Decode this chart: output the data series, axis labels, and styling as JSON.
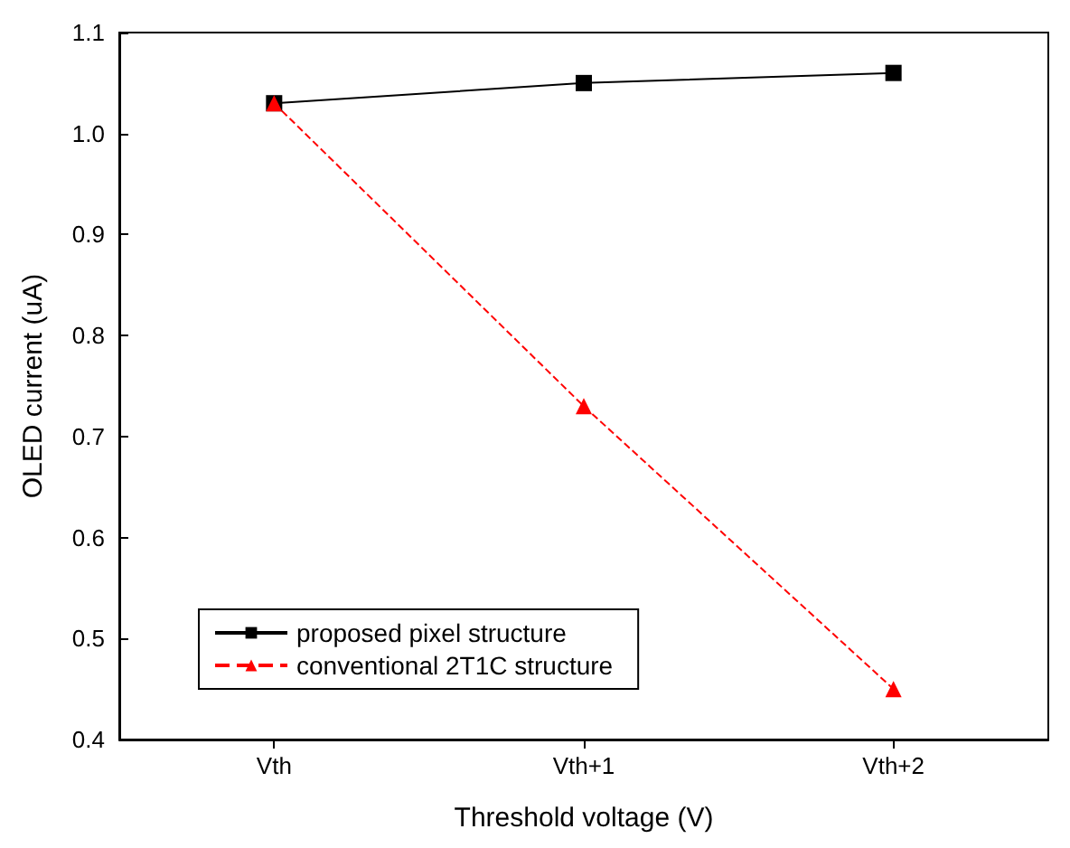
{
  "chart_data": {
    "type": "line",
    "xlabel": "Threshold voltage (V)",
    "ylabel": "OLED current (uA)",
    "categories": [
      "Vth",
      "Vth+1",
      "Vth+2"
    ],
    "series": [
      {
        "name": "proposed pixel structure",
        "color": "#000000",
        "values": [
          1.03,
          1.05,
          1.06
        ],
        "marker": "square",
        "line_style": "solid"
      },
      {
        "name": "conventional 2T1C structure",
        "color": "#ff0000",
        "values": [
          1.03,
          0.73,
          0.45
        ],
        "marker": "triangle",
        "line_style": "dashed"
      }
    ],
    "ylim": [
      0.4,
      1.1
    ],
    "yticks": [
      0.4,
      0.5,
      0.6,
      0.7,
      0.8,
      0.9,
      {
        "value": 1.0,
        "label": "1.0"
      },
      1.1
    ],
    "grid": false,
    "legend": "bottom left"
  }
}
